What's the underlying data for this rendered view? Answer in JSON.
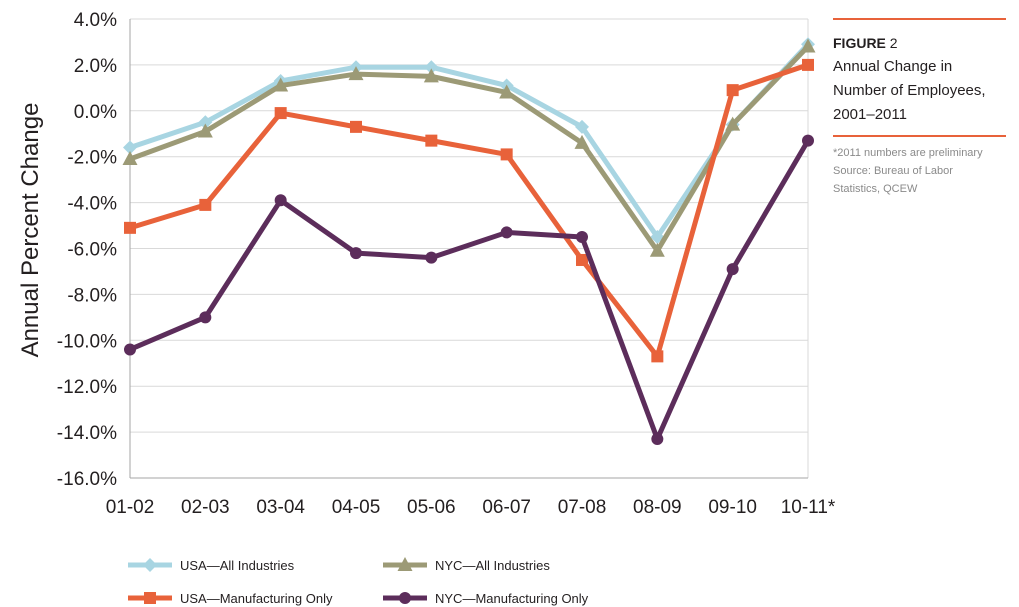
{
  "figure": {
    "label": "FIGURE",
    "number": "2",
    "description_lines": [
      "Annual Change in",
      "Number of Employees,",
      "2001–2011"
    ],
    "notes_lines": [
      "*2011 numbers are preliminary",
      "Source: Bureau of Labor",
      "Statistics, QCEW"
    ]
  },
  "colors": {
    "usa_all": "#a8d5e2",
    "nyc_all": "#9c9a76",
    "usa_mfg": "#e8623a",
    "nyc_mfg": "#5c2d5b",
    "grid": "#d9d9d9",
    "accent_rule": "#e8623a"
  },
  "chart_data": {
    "type": "line",
    "ylabel": "Annual Percent Change",
    "xlabel": "",
    "ylim": [
      -16,
      4
    ],
    "ytick_step": 2,
    "ytick_labels": [
      "4.0%",
      "2.0%",
      "0.0%",
      "-2.0%",
      "-4.0%",
      "-6.0%",
      "-8.0%",
      "-10.0%",
      "-12.0%",
      "-14.0%",
      "-16.0%"
    ],
    "categories": [
      "01-02",
      "02-03",
      "03-04",
      "04-05",
      "05-06",
      "06-07",
      "07-08",
      "08-09",
      "09-10",
      "10-11*"
    ],
    "grid": true,
    "legend_position": "bottom",
    "series": [
      {
        "key": "usa_all",
        "name": "USA—All Industries",
        "marker": "diamond",
        "values": [
          -1.6,
          -0.5,
          1.3,
          1.9,
          1.9,
          1.1,
          -0.7,
          -5.5,
          -0.6,
          2.9
        ]
      },
      {
        "key": "nyc_all",
        "name": "NYC—All Industries",
        "marker": "triangle",
        "values": [
          -2.1,
          -0.9,
          1.1,
          1.6,
          1.5,
          0.8,
          -1.4,
          -6.1,
          -0.6,
          2.8
        ]
      },
      {
        "key": "usa_mfg",
        "name": "USA—Manufacturing Only",
        "marker": "square",
        "values": [
          -5.1,
          -4.1,
          -0.1,
          -0.7,
          -1.3,
          -1.9,
          -6.5,
          -10.7,
          0.9,
          2.0
        ]
      },
      {
        "key": "nyc_mfg",
        "name": "NYC—Manufacturing Only",
        "marker": "circle",
        "values": [
          -10.4,
          -9.0,
          -3.9,
          -6.2,
          -6.4,
          -5.3,
          -5.5,
          -14.3,
          -6.9,
          -1.3
        ]
      }
    ]
  }
}
